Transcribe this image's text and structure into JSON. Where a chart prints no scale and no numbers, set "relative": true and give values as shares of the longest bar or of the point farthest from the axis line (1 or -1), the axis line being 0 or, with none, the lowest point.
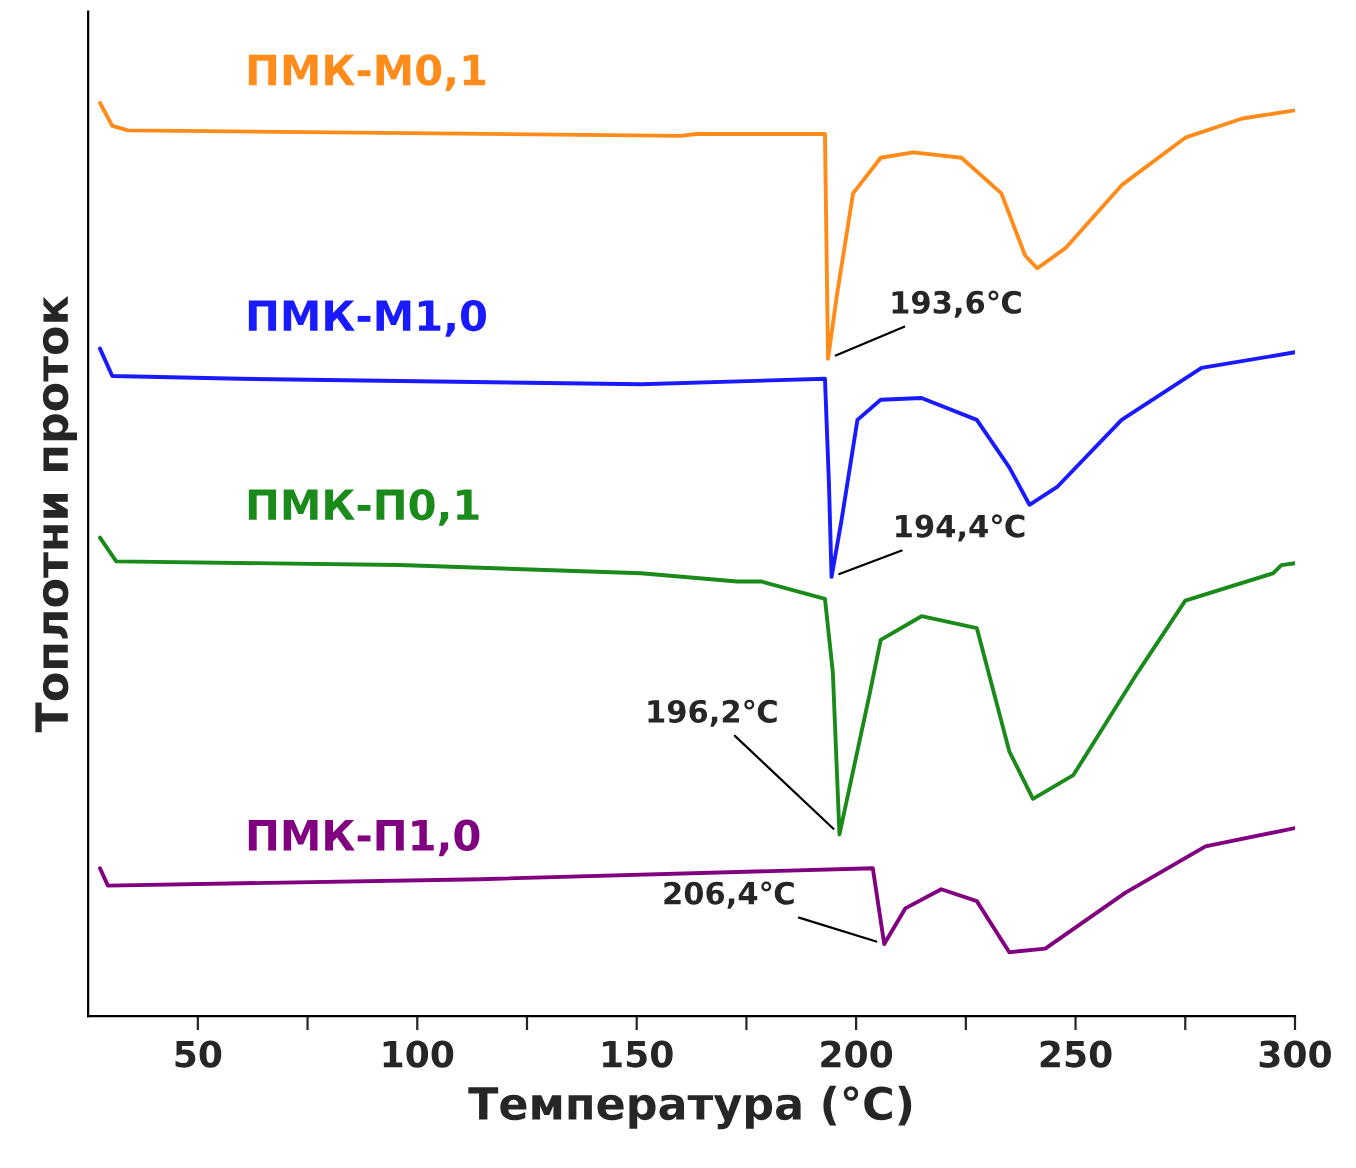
{
  "chart_data": {
    "type": "line",
    "relative": true,
    "xlabel": "Температура (°C)",
    "ylabel": "Топлотни проток",
    "xlim": [
      25,
      300
    ],
    "xticks": [
      50,
      {
        "value": 75,
        "label": null
      },
      100,
      {
        "value": 125,
        "label": null
      },
      150,
      {
        "value": 175,
        "label": null
      },
      200,
      {
        "value": 225,
        "label": null
      },
      250,
      {
        "value": 275,
        "label": null
      },
      300
    ],
    "tick_labels": "x",
    "grid": false,
    "legend": false,
    "line_style": "solid",
    "marker": "none",
    "series": [
      {
        "name": "ПМК-М0,1",
        "color": "#ff8c1a",
        "x": [
          27.7,
          30.5,
          34.1,
          160,
          163.6,
          192.9,
          193.6,
          195.6,
          199.3,
          205.6,
          213,
          224,
          233.1,
          238.5,
          241.3,
          247.7,
          260.5,
          275,
          288,
          300
        ],
        "values": [
          1.0,
          0.975,
          0.97,
          0.964,
          0.966,
          0.966,
          0.72,
          0.789,
          0.901,
          0.94,
          0.946,
          0.94,
          0.901,
          0.833,
          0.819,
          0.841,
          0.91,
          0.962,
          0.983,
          0.992
        ]
      },
      {
        "name": "ПМК-М1,0",
        "color": "#1a1aff",
        "x": [
          27.7,
          30.5,
          59.7,
          151,
          192.9,
          193.8,
          194.4,
          196.6,
          200.3,
          205.6,
          214.9,
          227.5,
          234.9,
          239.5,
          245.9,
          260.5,
          278.7,
          300
        ],
        "values": [
          0.731,
          0.701,
          0.698,
          0.692,
          0.698,
          0.584,
          0.481,
          0.541,
          0.653,
          0.675,
          0.677,
          0.653,
          0.601,
          0.56,
          0.58,
          0.653,
          0.71,
          0.727
        ]
      },
      {
        "name": "ПМК-П0,1",
        "color": "#1a8a1a",
        "x": [
          27.7,
          31.4,
          96,
          151,
          172.9,
          178.4,
          192.9,
          194.7,
          196.2,
          203,
          205.6,
          214.9,
          227.5,
          234.9,
          240.3,
          249.5,
          264.1,
          275,
          295,
          296.9,
          300
        ],
        "values": [
          0.524,
          0.498,
          0.494,
          0.485,
          0.476,
          0.476,
          0.457,
          0.376,
          0.199,
          0.351,
          0.412,
          0.438,
          0.425,
          0.29,
          0.238,
          0.264,
          0.376,
          0.455,
          0.485,
          0.494,
          0.496
        ]
      },
      {
        "name": "ПМК-П1,0",
        "color": "#800080",
        "x": [
          27.7,
          29.5,
          114.4,
          203.8,
          206.4,
          211.2,
          219.4,
          227.5,
          234.9,
          243.1,
          261.3,
          279.6,
          300
        ],
        "values": [
          0.162,
          0.143,
          0.15,
          0.162,
          0.079,
          0.118,
          0.139,
          0.126,
          0.07,
          0.074,
          0.135,
          0.186,
          0.206
        ]
      }
    ],
    "annotations": [
      {
        "text": "193,6℃",
        "x": 193.6,
        "y": 0.72
      },
      {
        "text": "194,4℃",
        "x": 194.4,
        "y": 0.481
      },
      {
        "text": "196,2℃",
        "x": 196.2,
        "y": 0.199
      },
      {
        "text": "206,4℃",
        "x": 206.4,
        "y": 0.079
      }
    ]
  }
}
